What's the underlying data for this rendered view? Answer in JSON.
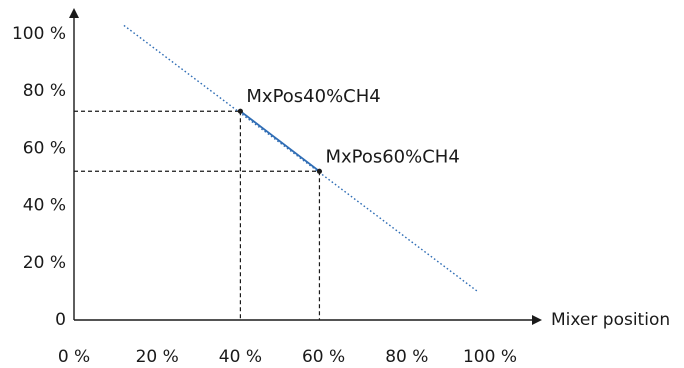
{
  "chart_data": {
    "type": "line",
    "title": "",
    "xlabel": "Mixer position",
    "ylabel": "",
    "xlim": [
      0,
      100
    ],
    "ylim": [
      0,
      100
    ],
    "x_tick_labels": [
      "0 %",
      "20 %",
      "40 %",
      "60 %",
      "80 %",
      "100 %"
    ],
    "y_tick_labels": [
      "0",
      "20 %",
      "40 %",
      "60 %",
      "80 %",
      "100 %"
    ],
    "x_ticks": [
      0,
      20,
      40,
      60,
      80,
      100
    ],
    "y_ticks": [
      0,
      20,
      40,
      60,
      80,
      100
    ],
    "dotted_line": {
      "x": [
        12,
        97
      ],
      "y": [
        103,
        10
      ]
    },
    "solid_segment": {
      "x": [
        40,
        59
      ],
      "y": [
        73,
        52
      ]
    },
    "points": [
      {
        "label": "MxPos40%CH4",
        "x": 40,
        "y": 73
      },
      {
        "label": "MxPos60%CH4",
        "x": 59,
        "y": 52
      }
    ],
    "colors": {
      "line": "#2f6db5",
      "axis": "#1a1a1a",
      "guide": "#1a1a1a"
    },
    "grid": false
  }
}
